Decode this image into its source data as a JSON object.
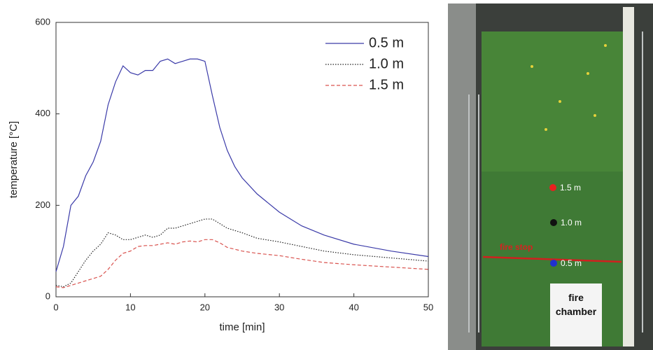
{
  "chart_data": {
    "type": "line",
    "x_label": "time [min]",
    "y_label": "temperature [°C]",
    "x": [
      0,
      1,
      2,
      3,
      4,
      5,
      6,
      7,
      8,
      9,
      10,
      11,
      12,
      13,
      14,
      15,
      16,
      17,
      18,
      19,
      20,
      21,
      22,
      23,
      24,
      25,
      27,
      30,
      33,
      36,
      40,
      45,
      50
    ],
    "series": [
      {
        "name": "0.5 m",
        "color": "#3a3aa8",
        "style": "solid",
        "values": [
          55,
          110,
          200,
          220,
          265,
          295,
          340,
          420,
          470,
          505,
          490,
          485,
          495,
          495,
          515,
          520,
          510,
          515,
          520,
          520,
          515,
          440,
          370,
          320,
          285,
          260,
          225,
          185,
          155,
          135,
          115,
          100,
          88
        ]
      },
      {
        "name": "1.0 m",
        "color": "#222222",
        "style": "dot",
        "values": [
          25,
          22,
          30,
          55,
          80,
          100,
          115,
          140,
          135,
          125,
          125,
          130,
          135,
          130,
          135,
          150,
          150,
          155,
          160,
          165,
          170,
          170,
          160,
          150,
          145,
          140,
          128,
          120,
          110,
          100,
          92,
          85,
          78
        ]
      },
      {
        "name": "1.5 m",
        "color": "#d9534f",
        "style": "dash",
        "values": [
          22,
          20,
          25,
          30,
          35,
          40,
          45,
          60,
          80,
          95,
          100,
          110,
          112,
          112,
          115,
          118,
          115,
          120,
          122,
          120,
          125,
          125,
          118,
          108,
          104,
          100,
          95,
          90,
          82,
          75,
          70,
          65,
          60
        ]
      }
    ],
    "xlim": [
      0,
      50
    ],
    "xticks": [
      0,
      10,
      20,
      30,
      40,
      50
    ],
    "ylim": [
      0,
      600
    ],
    "yticks": [
      0,
      200,
      400,
      600
    ],
    "grid": false,
    "legend": "upper right"
  },
  "photo": {
    "markers": [
      "1.5 m",
      "1.0 m",
      "0.5 m"
    ],
    "fire_stop": "fire stop",
    "fire_chamber": "fire chamber"
  }
}
